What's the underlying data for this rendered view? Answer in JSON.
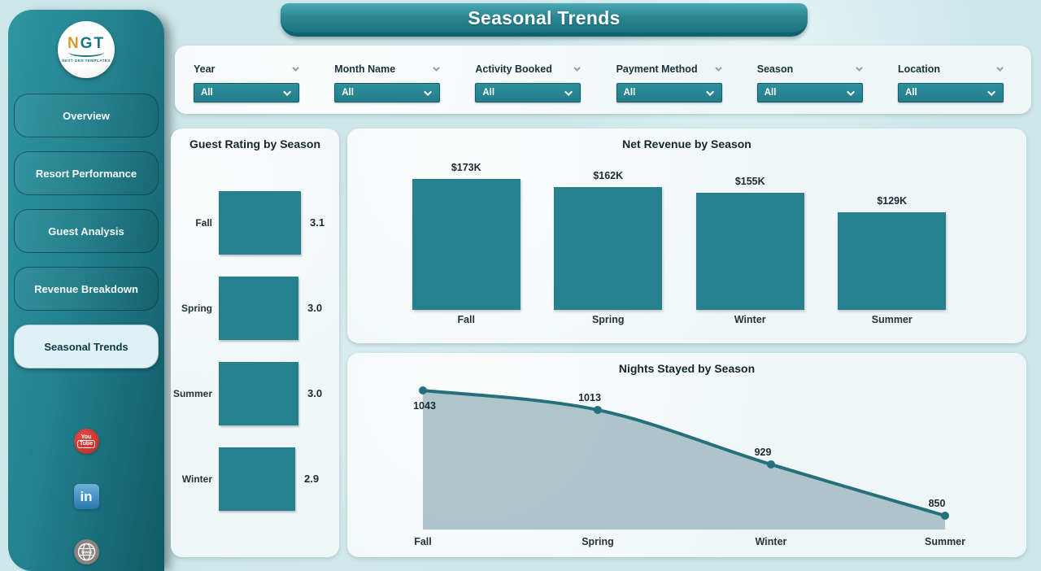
{
  "page": {
    "title": "Seasonal Trends"
  },
  "sidebar": {
    "logo": {
      "text_accent": "N",
      "text_rest": "GT",
      "subtext": "NEXT GEN TEMPLATES"
    },
    "items": [
      {
        "label": "Overview",
        "active": false
      },
      {
        "label": "Resort Performance",
        "active": false
      },
      {
        "label": "Guest Analysis",
        "active": false
      },
      {
        "label": "Revenue Breakdown",
        "active": false
      },
      {
        "label": "Seasonal Trends",
        "active": true
      }
    ],
    "social": {
      "youtube_top": "You",
      "youtube_bottom": "Tube",
      "linkedin": "in",
      "globe": "www"
    }
  },
  "filters": [
    {
      "label": "Year",
      "value": "All"
    },
    {
      "label": "Month Name",
      "value": "All"
    },
    {
      "label": "Activity Booked",
      "value": "All"
    },
    {
      "label": "Payment Method",
      "value": "All"
    },
    {
      "label": "Season",
      "value": "All"
    },
    {
      "label": "Location",
      "value": "All"
    }
  ],
  "colors": {
    "accent_teal": "#26808E",
    "area_fill": "#A5BFC4",
    "line_color": "#266F7C",
    "text_dark": "#1C2B33",
    "page_background": "#CDE7EA",
    "panel_background": "#F0F6F8"
  },
  "chart_data": [
    {
      "type": "bar",
      "orientation": "horizontal",
      "title": "Guest Rating by Season",
      "categories": [
        "Fall",
        "Spring",
        "Summer",
        "Winter"
      ],
      "values": [
        3.1,
        3.0,
        3.0,
        2.9
      ],
      "value_labels": [
        "3.1",
        "3.0",
        "3.0",
        "2.9"
      ],
      "xlim": [
        0,
        3.1
      ],
      "grid": false,
      "legend": false
    },
    {
      "type": "bar",
      "orientation": "vertical",
      "title": "Net Revenue by Season",
      "categories": [
        "Fall",
        "Spring",
        "Winter",
        "Summer"
      ],
      "values": [
        173000,
        162000,
        155000,
        129000
      ],
      "value_labels": [
        "$173K",
        "$162K",
        "$155K",
        "$129K"
      ],
      "ylim": [
        0,
        173000
      ],
      "grid": false,
      "legend": false
    },
    {
      "type": "area",
      "title": "Nights Stayed by Season",
      "categories": [
        "Fall",
        "Spring",
        "Winter",
        "Summer"
      ],
      "values": [
        1043,
        1013,
        929,
        850
      ],
      "value_labels": [
        "1043",
        "1013",
        "929",
        "850"
      ],
      "ylim": [
        840,
        1060
      ],
      "grid": false,
      "legend": false
    }
  ]
}
